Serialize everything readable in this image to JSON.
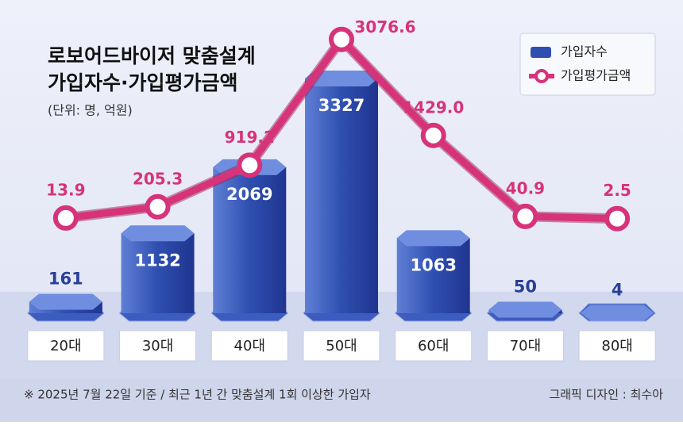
{
  "chart_data": {
    "type": "combo",
    "title": "로보어드바이저 맞춤설계",
    "subtitle": "가입자수·가입평가금액",
    "unit_note": "(단위: 명, 억원)",
    "categories": [
      "20대",
      "30대",
      "40대",
      "50대",
      "60대",
      "70대",
      "80대"
    ],
    "series": [
      {
        "name": "가입자수",
        "type": "bar",
        "color": "#2f4fb0",
        "values": [
          161,
          1132,
          2069,
          3327,
          1063,
          50,
          4
        ]
      },
      {
        "name": "가입평가금액",
        "type": "line",
        "axis": "y2",
        "color": "#d6337a",
        "values": [
          13.9,
          205.3,
          919.2,
          3076.6,
          1429.0,
          40.9,
          2.5
        ],
        "value_labels": [
          "13.9",
          "205.3",
          "919.2",
          "3076.6",
          "1429.0",
          "40.9",
          "2.5"
        ]
      }
    ],
    "ylim": [
      0,
      3900
    ],
    "y2lim": [
      -1620,
      3100
    ],
    "legend": "top-right",
    "footnote": "※ 2025년 7월 22일 기준 / 최근 1년 간 맞춤설계 1회 이상한 가입자",
    "credit": "그래픽 디자인 : 최수아"
  }
}
